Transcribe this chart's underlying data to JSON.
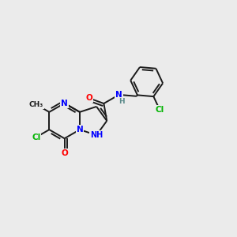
{
  "background_color": "#ebebeb",
  "bond_color": "#1a1a1a",
  "atom_colors": {
    "N": "#0000ff",
    "O": "#ff0000",
    "Cl": "#00b300",
    "C": "#1a1a1a",
    "H": "#5a8a8a"
  },
  "lw": 1.4
}
